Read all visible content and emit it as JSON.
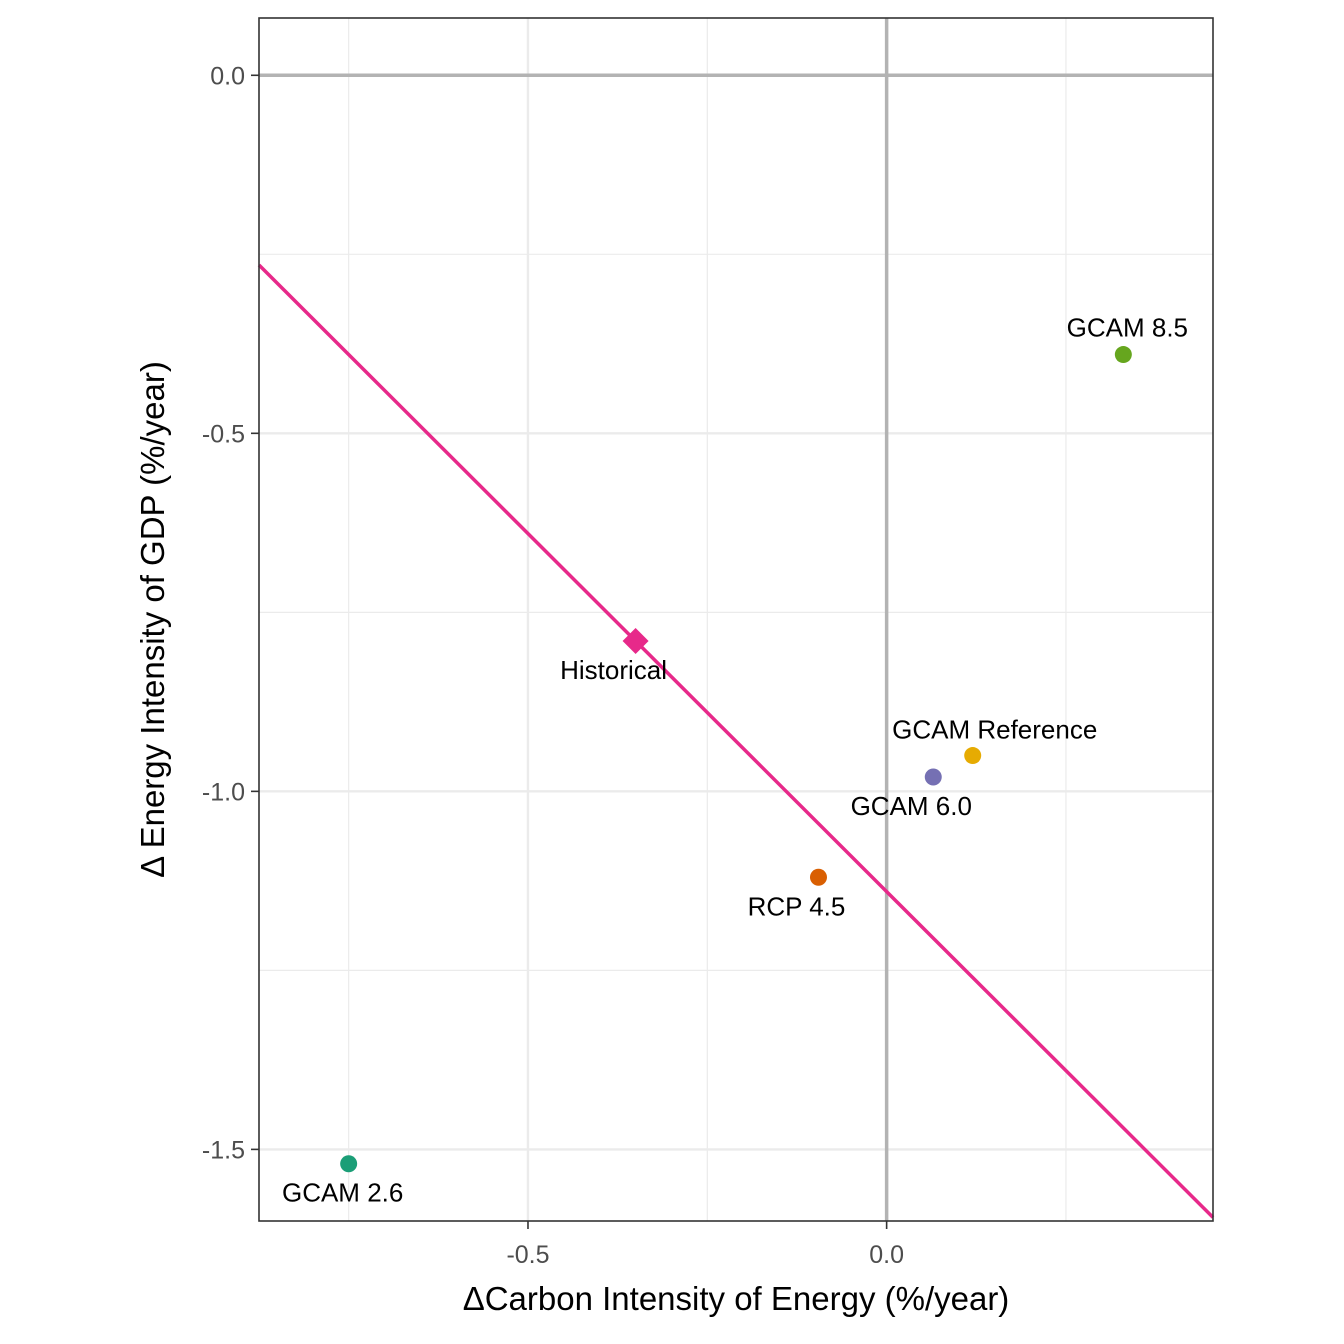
{
  "chart_data": {
    "type": "scatter",
    "xlabel": "ΔCarbon Intensity of Energy (%/year)",
    "ylabel": "Δ Energy Intensity of GDP (%/year)",
    "xlim": [
      -0.875,
      0.455
    ],
    "ylim": [
      -1.6,
      0.08
    ],
    "x_ticks": [
      -0.5,
      0.0
    ],
    "x_tick_labels": [
      "-0.5",
      "0.0"
    ],
    "y_ticks": [
      0.0,
      -0.5,
      -1.0,
      -1.5
    ],
    "y_tick_labels": [
      "0.0",
      "-0.5",
      "-1.0",
      "-1.5"
    ],
    "grid": true,
    "reference_lines": {
      "x": 0.0,
      "y": 0.0
    },
    "points": [
      {
        "label": "GCAM 8.5",
        "x": 0.33,
        "y": -0.39,
        "color": "#66a61e",
        "shape": "circle"
      },
      {
        "label": "Historical",
        "x": -0.35,
        "y": -0.79,
        "color": "#e7298a",
        "shape": "diamond"
      },
      {
        "label": "GCAM Reference",
        "x": 0.12,
        "y": -0.95,
        "color": "#e6ab02",
        "shape": "circle"
      },
      {
        "label": "GCAM 6.0",
        "x": 0.065,
        "y": -0.98,
        "color": "#7570b3",
        "shape": "circle"
      },
      {
        "label": "RCP 4.5",
        "x": -0.095,
        "y": -1.12,
        "color": "#d95f02",
        "shape": "circle"
      },
      {
        "label": "GCAM 2.6",
        "x": -0.75,
        "y": -1.52,
        "color": "#1b9e77",
        "shape": "circle"
      }
    ],
    "line": {
      "slope": -1,
      "intercept": -1.14,
      "color": "#e7298a"
    },
    "colors": {
      "grid": "#ebebeb",
      "zero_line": "#b3b3b3",
      "panel_border": "#333333"
    }
  }
}
